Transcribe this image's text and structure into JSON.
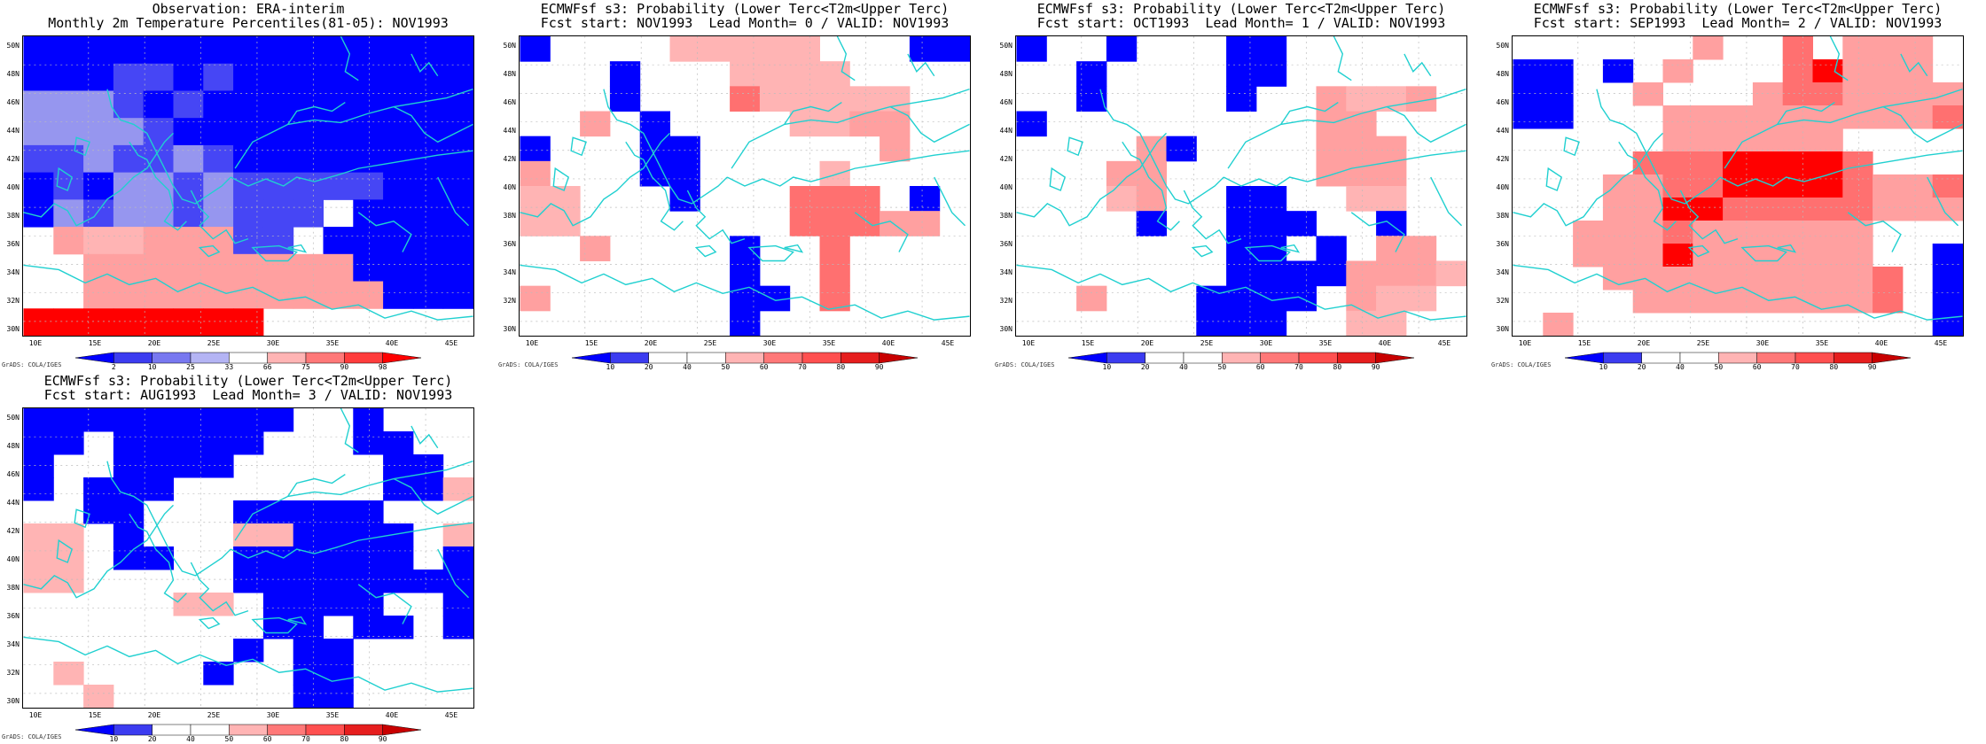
{
  "panels": [
    {
      "id": "obs",
      "title_line1": "Observation: ERA-interim",
      "title_line2": "Monthly 2m Temperature Percentiles(81-05): NOV1993"
    },
    {
      "id": "lead0",
      "title_line1": "ECMWFsf s3: Probability (Lower Terc<T2m<Upper Terc)",
      "title_line2": "Fcst start: NOV1993  Lead Month= 0 / VALID: NOV1993"
    },
    {
      "id": "lead1",
      "title_line1": "ECMWFsf s3: Probability (Lower Terc<T2m<Upper Terc)",
      "title_line2": "Fcst start: OCT1993  Lead Month= 1 / VALID: NOV1993"
    },
    {
      "id": "lead2",
      "title_line1": "ECMWFsf s3: Probability (Lower Terc<T2m<Upper Terc)",
      "title_line2": "Fcst start: SEP1993  Lead Month= 2 / VALID: NOV1993"
    },
    {
      "id": "lead3",
      "title_line1": "ECMWFsf s3: Probability (Lower Terc<T2m<Upper Terc)",
      "title_line2": "Fcst start: AUG1993  Lead Month= 3 / VALID: NOV1993"
    }
  ],
  "lat_labels": [
    "50N",
    "48N",
    "46N",
    "44N",
    "42N",
    "40N",
    "38N",
    "36N",
    "34N",
    "32N",
    "30N"
  ],
  "lon_labels": [
    "10E",
    "15E",
    "20E",
    "25E",
    "30E",
    "35E",
    "40E",
    "45E"
  ],
  "obs_colorbar": {
    "labels": [
      "2",
      "10",
      "25",
      "33",
      "66",
      "75",
      "90",
      "98"
    ],
    "colors": [
      "#0000ff",
      "#3c3cf0",
      "#7878f0",
      "#b4b4f4",
      "#ffffff",
      "#ffb4b4",
      "#ff7878",
      "#ff3c3c",
      "#ff0000"
    ]
  },
  "prob_colorbar": {
    "labels": [
      "10",
      "20",
      "40",
      "50",
      "60",
      "70",
      "80",
      "90"
    ],
    "colors": [
      "#0000ff",
      "#3c3cf0",
      "#ffffff",
      "#ffffff",
      "#ffb4b4",
      "#ff7878",
      "#ff5050",
      "#e61e1e",
      "#c80000"
    ]
  },
  "credit": "GrADS: COLA/IGES",
  "chart_data": [
    {
      "type": "heatmap",
      "panel": "obs",
      "title": "Observation: ERA-interim",
      "subtitle": "Monthly 2m Temperature Percentiles(81-05): NOV1993",
      "x_lon_range": [
        8.75,
        46.25
      ],
      "y_lat_range": [
        30,
        51
      ],
      "cell_size_deg": 2.5,
      "grid_rows_N_to_S": [
        "BBBBBBBBBBBBBBB",
        "BBBMMBMBBBBBBBB",
        "LLLMBMBBBBBBBBB",
        "LLLLMBBBBBBBBBB",
        "MMLMMLMBBBBBBBB",
        "BMBLLMLMMMMMBBB",
        "BLMLLMLMMMWBBBB",
        "WwPPwwwMMWBBBBB",
        "WWwwwwwwwwwBBBB",
        "WWwwwwwwwwwwBBB",
        "RRRRRRRRWWWWWWW"
      ]
    },
    {
      "type": "heatmap",
      "panel": "lead0",
      "cell_size_deg": 2.5,
      "grid_rows_N_to_S": [
        "BWWWWPPPPPWWWBB",
        "WWWBWWWPPPPWWWW",
        "WWWBWWWrPPPPPWW",
        "WWwWBWWWWPPwwWW",
        "BWWWBBWWWWWWwWW",
        "wWWWBBWWWWPWWWW",
        "PPWWWBWWWrrrWBW",
        "PPWWWWWWWrrrwwW",
        "WWwWWWWBWWrWWWW",
        "WWWWWWWBWWrWWWW",
        "wWWWWWWBBWrWWWW",
        "WWWWWWWBWWWWWWW"
      ]
    },
    {
      "type": "heatmap",
      "panel": "lead1",
      "cell_size_deg": 2.5,
      "grid_rows_N_to_S": [
        "BWWBWWWBBWWWWWW",
        "WWBWWWWBBWWWWWW",
        "WWBWWWWBWWwPPwW",
        "BWWWWWWWWWwwWWW",
        "WWWWwBWWWWwwwWW",
        "WWWwwWWWWWwwwWW",
        "WWWPwWWBBWWPPWW",
        "WWWWBWWBBBWWBWW",
        "WWWWWWWBBWBWwwW",
        "WWWWWWWBBBBwwwP",
        "WWwWWWBBBBWwPPW",
        "WWWWWWBBBWWPPWW"
      ]
    },
    {
      "type": "heatmap",
      "panel": "lead2",
      "cell_size_deg": 2.5,
      "grid_rows_N_to_S": [
        "WWWWWWwWWrWwwwW",
        "BBWBWwWWWrRwwwW",
        "BBWWwWWWwrrwwww",
        "BBWWWwwwwwwwwwr",
        "WWWWWwwwwwwWWWW",
        "WWWWrrrRRRRrWWW",
        "WWWwwrrRRRRrwwr",
        "WWWwwRRrrrrrwww",
        "WWwwwrwwwwwwWWW",
        "WWwwwRwwwwwwWWB",
        "WWWwwwwwwwwwrWB",
        "WWWWwwwwwwwwrWB",
        "WwWWWWWWWWWWWWB"
      ]
    },
    {
      "type": "heatmap",
      "panel": "lead3",
      "cell_size_deg": 2.5,
      "grid_rows_N_to_S": [
        "BBBBBBBBBWWBWWW",
        "BBWBBBBBWWWBBWW",
        "BWWBBBBWWWWWBBW",
        "BWBBBWWWWWWWBBP",
        "WWBBWWWBBBBBWWW",
        "PPWBWWWPPBBBBWP",
        "PPWBBWWBBBBBBWB",
        "PPWWWWWBBBBBBBB",
        "WWWWWPPWBBBBWWB",
        "WWWWWWWWBBWBBWB",
        "WWWWWWWBWBBWWWW",
        "WPWWWWBWWBBWWWW",
        "WWPWWWWWWBBWWWW"
      ]
    }
  ]
}
